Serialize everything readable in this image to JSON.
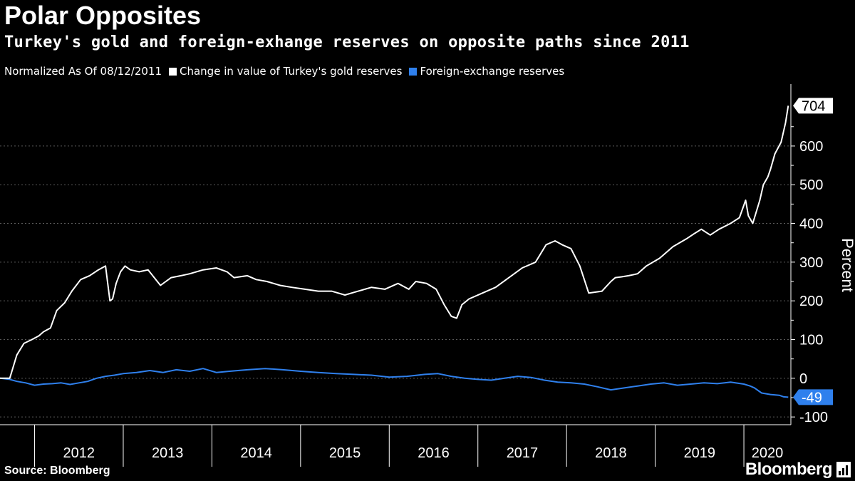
{
  "header": {
    "title": "Polar Opposites",
    "subtitle": "Turkey's gold and foreign-exhange reserves on opposite paths since 2011"
  },
  "legend": {
    "note": "Normalized As Of 08/12/2011",
    "items": [
      {
        "label": "Change in value of Turkey's gold reserves",
        "color": "#ffffff"
      },
      {
        "label": "Foreign-exchange reserves",
        "color": "#2f80ed"
      }
    ]
  },
  "footer": {
    "source": "Source: Bloomberg",
    "brand": "Bloomberg"
  },
  "chart_data": {
    "type": "line",
    "ylabel": "Percent",
    "ylim": [
      -120,
      760
    ],
    "xlim": [
      2011.61,
      2020.53
    ],
    "yticks": [
      -100,
      0,
      100,
      200,
      300,
      400,
      500,
      600
    ],
    "ytick_labels": [
      "-100",
      "0",
      "100",
      "200",
      "300",
      "400",
      "500",
      "600"
    ],
    "xtick_labels": [
      "2012",
      "2013",
      "2014",
      "2015",
      "2016",
      "2017",
      "2018",
      "2019",
      "2020"
    ],
    "xtick_positions": [
      2012,
      2013,
      2014,
      2015,
      2016,
      2017,
      2018,
      2019,
      2020
    ],
    "grid": true,
    "series": [
      {
        "name": "Change in value of Turkey's gold reserves",
        "color": "#ffffff",
        "end_label": "704",
        "x": [
          2011.61,
          2011.72,
          2011.8,
          2011.88,
          2011.97,
          2012.05,
          2012.1,
          2012.18,
          2012.25,
          2012.34,
          2012.42,
          2012.52,
          2012.62,
          2012.72,
          2012.8,
          2012.85,
          2012.88,
          2012.92,
          2012.97,
          2013.02,
          2013.08,
          2013.18,
          2013.28,
          2013.42,
          2013.54,
          2013.65,
          2013.75,
          2013.9,
          2014.05,
          2014.17,
          2014.25,
          2014.4,
          2014.5,
          2014.62,
          2014.77,
          2014.9,
          2015.05,
          2015.2,
          2015.35,
          2015.5,
          2015.65,
          2015.8,
          2015.95,
          2016.1,
          2016.22,
          2016.3,
          2016.42,
          2016.53,
          2016.62,
          2016.7,
          2016.76,
          2016.82,
          2016.9,
          2017.05,
          2017.2,
          2017.35,
          2017.5,
          2017.65,
          2017.77,
          2017.87,
          2017.95,
          2018.05,
          2018.15,
          2018.25,
          2018.4,
          2018.5,
          2018.55,
          2018.62,
          2018.7,
          2018.8,
          2018.9,
          2019.05,
          2019.2,
          2019.35,
          2019.45,
          2019.52,
          2019.62,
          2019.72,
          2019.85,
          2019.95,
          2020.02,
          2020.05,
          2020.1,
          2020.18,
          2020.22,
          2020.27,
          2020.3,
          2020.35,
          2020.42,
          2020.47,
          2020.5
        ],
        "y": [
          0,
          0,
          60,
          90,
          100,
          110,
          120,
          130,
          175,
          195,
          225,
          255,
          265,
          280,
          290,
          200,
          205,
          245,
          275,
          290,
          280,
          275,
          280,
          240,
          260,
          265,
          270,
          280,
          285,
          275,
          260,
          265,
          255,
          250,
          240,
          235,
          230,
          225,
          225,
          215,
          225,
          235,
          230,
          245,
          230,
          250,
          245,
          230,
          190,
          160,
          155,
          190,
          205,
          220,
          235,
          260,
          285,
          300,
          345,
          355,
          345,
          335,
          290,
          220,
          225,
          250,
          260,
          262,
          265,
          270,
          290,
          310,
          340,
          360,
          375,
          385,
          370,
          385,
          400,
          415,
          460,
          420,
          400,
          460,
          500,
          520,
          540,
          580,
          610,
          660,
          704
        ]
      },
      {
        "name": "Foreign-exchange reserves",
        "color": "#2f80ed",
        "end_label": "-49",
        "x": [
          2011.61,
          2011.72,
          2011.8,
          2011.9,
          2012.0,
          2012.1,
          2012.2,
          2012.3,
          2012.4,
          2012.5,
          2012.6,
          2012.7,
          2012.8,
          2012.9,
          2013.0,
          2013.15,
          2013.3,
          2013.45,
          2013.6,
          2013.75,
          2013.9,
          2014.05,
          2014.2,
          2014.4,
          2014.6,
          2014.8,
          2015.0,
          2015.2,
          2015.4,
          2015.6,
          2015.8,
          2016.0,
          2016.2,
          2016.4,
          2016.55,
          2016.7,
          2016.85,
          2017.0,
          2017.15,
          2017.3,
          2017.45,
          2017.6,
          2017.75,
          2017.9,
          2018.05,
          2018.2,
          2018.35,
          2018.5,
          2018.65,
          2018.8,
          2018.95,
          2019.1,
          2019.25,
          2019.4,
          2019.55,
          2019.7,
          2019.85,
          2020.0,
          2020.07,
          2020.12,
          2020.2,
          2020.3,
          2020.4,
          2020.45,
          2020.5
        ],
        "y": [
          0,
          -3,
          -8,
          -12,
          -18,
          -15,
          -14,
          -12,
          -16,
          -12,
          -8,
          0,
          5,
          8,
          12,
          15,
          20,
          15,
          22,
          18,
          25,
          15,
          18,
          22,
          25,
          22,
          18,
          15,
          12,
          10,
          8,
          3,
          5,
          10,
          12,
          5,
          0,
          -3,
          -5,
          0,
          5,
          2,
          -5,
          -10,
          -12,
          -15,
          -22,
          -30,
          -25,
          -20,
          -15,
          -12,
          -18,
          -15,
          -12,
          -14,
          -10,
          -15,
          -20,
          -25,
          -38,
          -42,
          -44,
          -48,
          -49
        ]
      }
    ]
  }
}
